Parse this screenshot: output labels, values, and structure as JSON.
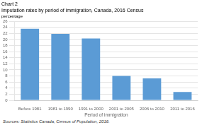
{
  "chart_data": {
    "type": "bar",
    "title": "Imputation rates by period of immigration, Canada, 2016 Census",
    "subtitle": "percentage",
    "annotations": [
      "Chart 2",
      "Sources: Statistics Canada, Census of Population, 2016."
    ],
    "categories": [
      "Before 1981",
      "1981 to 1990",
      "1991 to 2000",
      "2001 to 2005",
      "2006 to 2010",
      "2011 to 2016"
    ],
    "values": [
      23.5,
      21.8,
      20.3,
      8.0,
      7.2,
      2.7
    ],
    "color": "#5b9bd5",
    "xlabel": "Period of immigration",
    "ylim": [
      0,
      26
    ],
    "yticks": [
      0,
      2,
      4,
      6,
      8,
      10,
      12,
      14,
      16,
      18,
      20,
      22,
      24,
      26
    ],
    "grid": true
  }
}
